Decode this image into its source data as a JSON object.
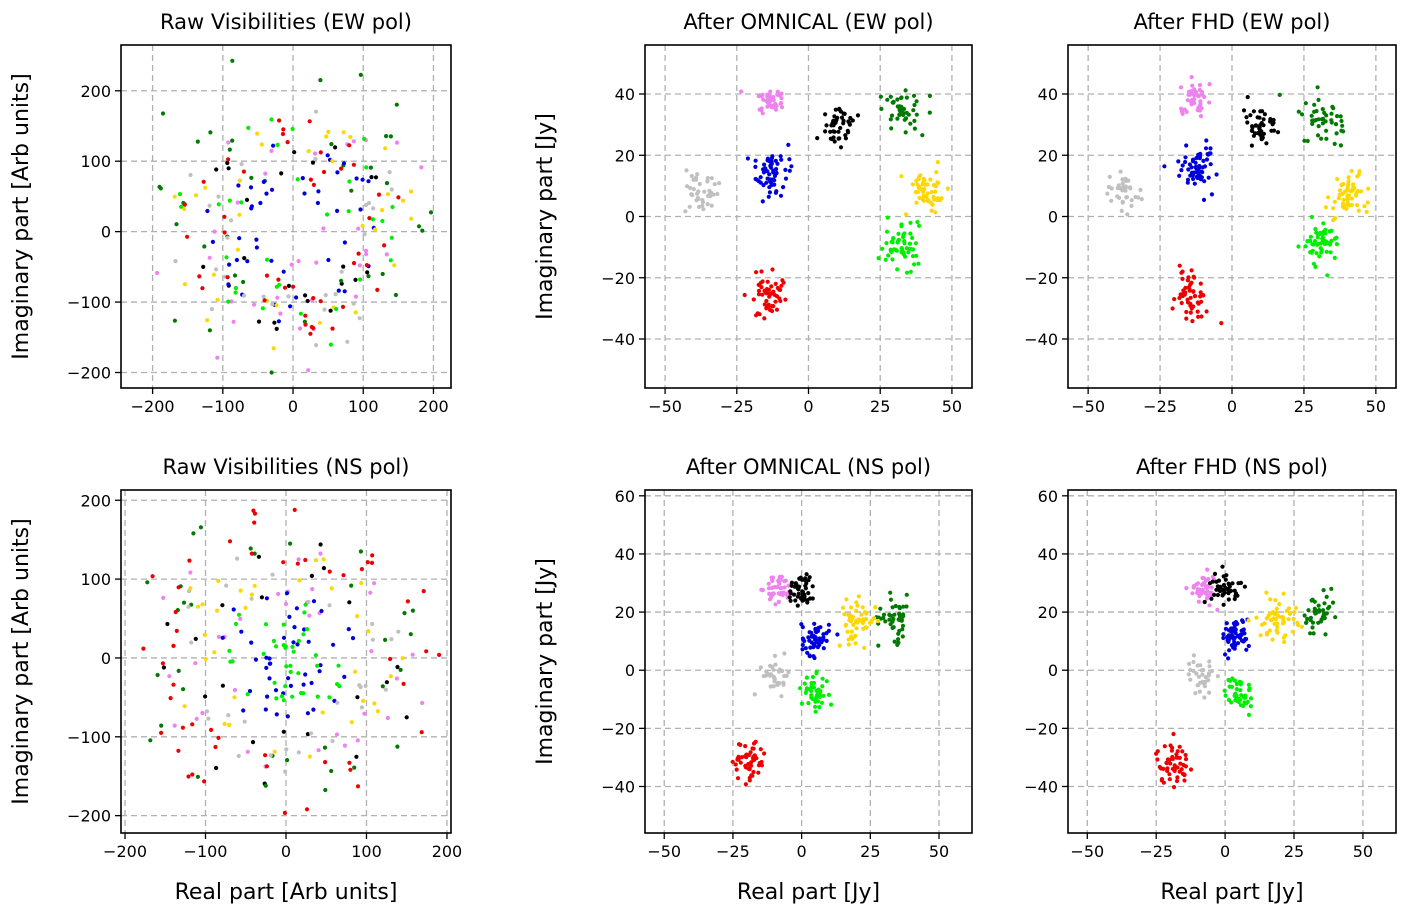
{
  "figure": {
    "background": "#ffffff"
  },
  "palette": {
    "violet": "#ee82ee",
    "black": "#000000",
    "darkgreen": "#007a00",
    "blue": "#0000dd",
    "silver": "#c0c0c0",
    "gold": "#ffd700",
    "lime": "#00ee00",
    "red": "#ee0000",
    "grid": "#b0b0b0"
  },
  "chart_data": [
    {
      "type": "scatter",
      "title": "Raw Visibilities (EW pol)",
      "xlabel": "",
      "ylabel": "Imaginary part [Arb units]",
      "xlim": [
        -245,
        225
      ],
      "ylim": [
        -222,
        265
      ],
      "xticks": [
        -200,
        -100,
        0,
        100,
        200
      ],
      "yticks": [
        -200,
        -100,
        0,
        100,
        200
      ],
      "grid": true,
      "layout": "ring",
      "clusters": [
        {
          "color": "violet",
          "count": 34,
          "rmin": 40,
          "rmax": 210
        },
        {
          "color": "black",
          "count": 24,
          "rmin": 70,
          "rmax": 150
        },
        {
          "color": "darkgreen",
          "count": 38,
          "rmin": 80,
          "rmax": 260
        },
        {
          "color": "blue",
          "count": 45,
          "rmin": 40,
          "rmax": 130
        },
        {
          "color": "silver",
          "count": 30,
          "rmin": 70,
          "rmax": 180
        },
        {
          "color": "gold",
          "count": 34,
          "rmin": 80,
          "rmax": 180
        },
        {
          "color": "lime",
          "count": 32,
          "rmin": 50,
          "rmax": 170
        },
        {
          "color": "red",
          "count": 44,
          "rmin": 70,
          "rmax": 160
        }
      ]
    },
    {
      "type": "scatter",
      "title": "After OMNICAL (EW pol)",
      "xlabel": "",
      "ylabel": "Imaginary part [Jy]",
      "xlim": [
        -57,
        57
      ],
      "ylim": [
        -56,
        56
      ],
      "xticks": [
        -50,
        -25,
        0,
        25,
        50
      ],
      "yticks": [
        -40,
        -20,
        0,
        20,
        40
      ],
      "grid": true,
      "layout": "clusters",
      "clusters": [
        {
          "color": "violet",
          "cx": -13,
          "cy": 38,
          "sx": 2.5,
          "sy": 2,
          "count": 40
        },
        {
          "color": "black",
          "cx": 10,
          "cy": 30,
          "sx": 3,
          "sy": 3,
          "count": 45
        },
        {
          "color": "darkgreen",
          "cx": 33,
          "cy": 34,
          "sx": 4,
          "sy": 3,
          "count": 45
        },
        {
          "color": "blue",
          "cx": -13,
          "cy": 15,
          "sx": 3.5,
          "sy": 4,
          "count": 60
        },
        {
          "color": "silver",
          "cx": -37,
          "cy": 8,
          "sx": 3,
          "sy": 3,
          "count": 40
        },
        {
          "color": "gold",
          "cx": 41,
          "cy": 8,
          "sx": 3,
          "sy": 3.5,
          "count": 55
        },
        {
          "color": "lime",
          "cx": 32,
          "cy": -9,
          "sx": 3,
          "sy": 4,
          "count": 55
        },
        {
          "color": "red",
          "cx": -14,
          "cy": -25,
          "sx": 3,
          "sy": 4,
          "count": 55
        }
      ]
    },
    {
      "type": "scatter",
      "title": "After FHD (EW pol)",
      "xlabel": "",
      "ylabel": "",
      "xlim": [
        -57,
        57
      ],
      "ylim": [
        -56,
        56
      ],
      "xticks": [
        -50,
        -25,
        0,
        25,
        50
      ],
      "yticks": [
        -40,
        -20,
        0,
        20,
        40
      ],
      "grid": true,
      "layout": "clusters",
      "clusters": [
        {
          "color": "violet",
          "cx": -13,
          "cy": 38,
          "sx": 2.5,
          "sy": 2.5,
          "count": 40
        },
        {
          "color": "black",
          "cx": 10,
          "cy": 30,
          "sx": 3,
          "sy": 3,
          "count": 45
        },
        {
          "color": "darkgreen",
          "cx": 32,
          "cy": 32,
          "sx": 4,
          "sy": 3.5,
          "count": 45
        },
        {
          "color": "blue",
          "cx": -13,
          "cy": 15,
          "sx": 3.5,
          "sy": 4,
          "count": 60
        },
        {
          "color": "silver",
          "cx": -37,
          "cy": 8,
          "sx": 3,
          "sy": 3.5,
          "count": 35
        },
        {
          "color": "gold",
          "cx": 40,
          "cy": 7,
          "sx": 3,
          "sy": 3.5,
          "count": 55
        },
        {
          "color": "lime",
          "cx": 31,
          "cy": -9,
          "sx": 3,
          "sy": 4,
          "count": 55
        },
        {
          "color": "red",
          "cx": -14,
          "cy": -25,
          "sx": 3,
          "sy": 4,
          "count": 55
        }
      ]
    },
    {
      "type": "scatter",
      "title": "Raw Visibilities (NS pol)",
      "xlabel": "Real part [Arb units]",
      "ylabel": "Imaginary part [Arb units]",
      "xlim": [
        -205,
        205
      ],
      "ylim": [
        -222,
        213
      ],
      "xticks": [
        -200,
        -100,
        0,
        100,
        200
      ],
      "yticks": [
        -200,
        -100,
        0,
        100,
        200
      ],
      "grid": true,
      "layout": "ring",
      "clusters": [
        {
          "color": "violet",
          "count": 34,
          "rmin": 60,
          "rmax": 180
        },
        {
          "color": "black",
          "count": 22,
          "rmin": 70,
          "rmax": 170
        },
        {
          "color": "darkgreen",
          "count": 32,
          "rmin": 120,
          "rmax": 200
        },
        {
          "color": "blue",
          "count": 45,
          "rmin": 20,
          "rmax": 90
        },
        {
          "color": "silver",
          "count": 30,
          "rmin": 70,
          "rmax": 150
        },
        {
          "color": "gold",
          "count": 34,
          "rmin": 80,
          "rmax": 150
        },
        {
          "color": "lime",
          "count": 40,
          "rmin": 10,
          "rmax": 80
        },
        {
          "color": "red",
          "count": 50,
          "rmin": 120,
          "rmax": 200
        }
      ]
    },
    {
      "type": "scatter",
      "title": "After OMNICAL (NS pol)",
      "xlabel": "Real part [Jy]",
      "ylabel": "Imaginary part [Jy]",
      "xlim": [
        -57,
        62
      ],
      "ylim": [
        -56,
        62
      ],
      "xticks": [
        -50,
        -25,
        0,
        25,
        50
      ],
      "yticks": [
        -40,
        -20,
        0,
        20,
        40,
        60
      ],
      "grid": true,
      "layout": "clusters",
      "clusters": [
        {
          "color": "violet",
          "cx": -8,
          "cy": 28,
          "sx": 2.5,
          "sy": 2.5,
          "count": 45
        },
        {
          "color": "black",
          "cx": 0,
          "cy": 28,
          "sx": 2.5,
          "sy": 3,
          "count": 45
        },
        {
          "color": "darkgreen",
          "cx": 34,
          "cy": 18,
          "sx": 3,
          "sy": 4,
          "count": 45
        },
        {
          "color": "blue",
          "cx": 5,
          "cy": 11,
          "sx": 2.5,
          "sy": 3,
          "count": 55
        },
        {
          "color": "silver",
          "cx": -9,
          "cy": -2,
          "sx": 2.5,
          "sy": 3,
          "count": 35
        },
        {
          "color": "gold",
          "cx": 20,
          "cy": 17,
          "sx": 3.5,
          "sy": 3.5,
          "count": 55
        },
        {
          "color": "lime",
          "cx": 5,
          "cy": -8,
          "sx": 2.5,
          "sy": 3,
          "count": 45
        },
        {
          "color": "red",
          "cx": -19,
          "cy": -31,
          "sx": 3,
          "sy": 3.5,
          "count": 55
        }
      ]
    },
    {
      "type": "scatter",
      "title": "After FHD (NS pol)",
      "xlabel": "Real part [Jy]",
      "ylabel": "",
      "xlim": [
        -57,
        62
      ],
      "ylim": [
        -56,
        62
      ],
      "xticks": [
        -50,
        -25,
        0,
        25,
        50
      ],
      "yticks": [
        -40,
        -20,
        0,
        20,
        40,
        60
      ],
      "grid": true,
      "layout": "clusters",
      "clusters": [
        {
          "color": "violet",
          "cx": -8,
          "cy": 28,
          "sx": 2.5,
          "sy": 2.5,
          "count": 45
        },
        {
          "color": "black",
          "cx": 0,
          "cy": 29,
          "sx": 2.5,
          "sy": 3,
          "count": 45
        },
        {
          "color": "darkgreen",
          "cx": 34,
          "cy": 18,
          "sx": 3,
          "sy": 4,
          "count": 45
        },
        {
          "color": "blue",
          "cx": 4,
          "cy": 12,
          "sx": 2.5,
          "sy": 3,
          "count": 55
        },
        {
          "color": "silver",
          "cx": -9,
          "cy": -2,
          "sx": 2.5,
          "sy": 3,
          "count": 35
        },
        {
          "color": "gold",
          "cx": 19,
          "cy": 18,
          "sx": 3.5,
          "sy": 3.5,
          "count": 55
        },
        {
          "color": "lime",
          "cx": 5,
          "cy": -8,
          "sx": 2.5,
          "sy": 3,
          "count": 45
        },
        {
          "color": "red",
          "cx": -19,
          "cy": -32,
          "sx": 3,
          "sy": 3.5,
          "count": 55
        }
      ]
    }
  ]
}
